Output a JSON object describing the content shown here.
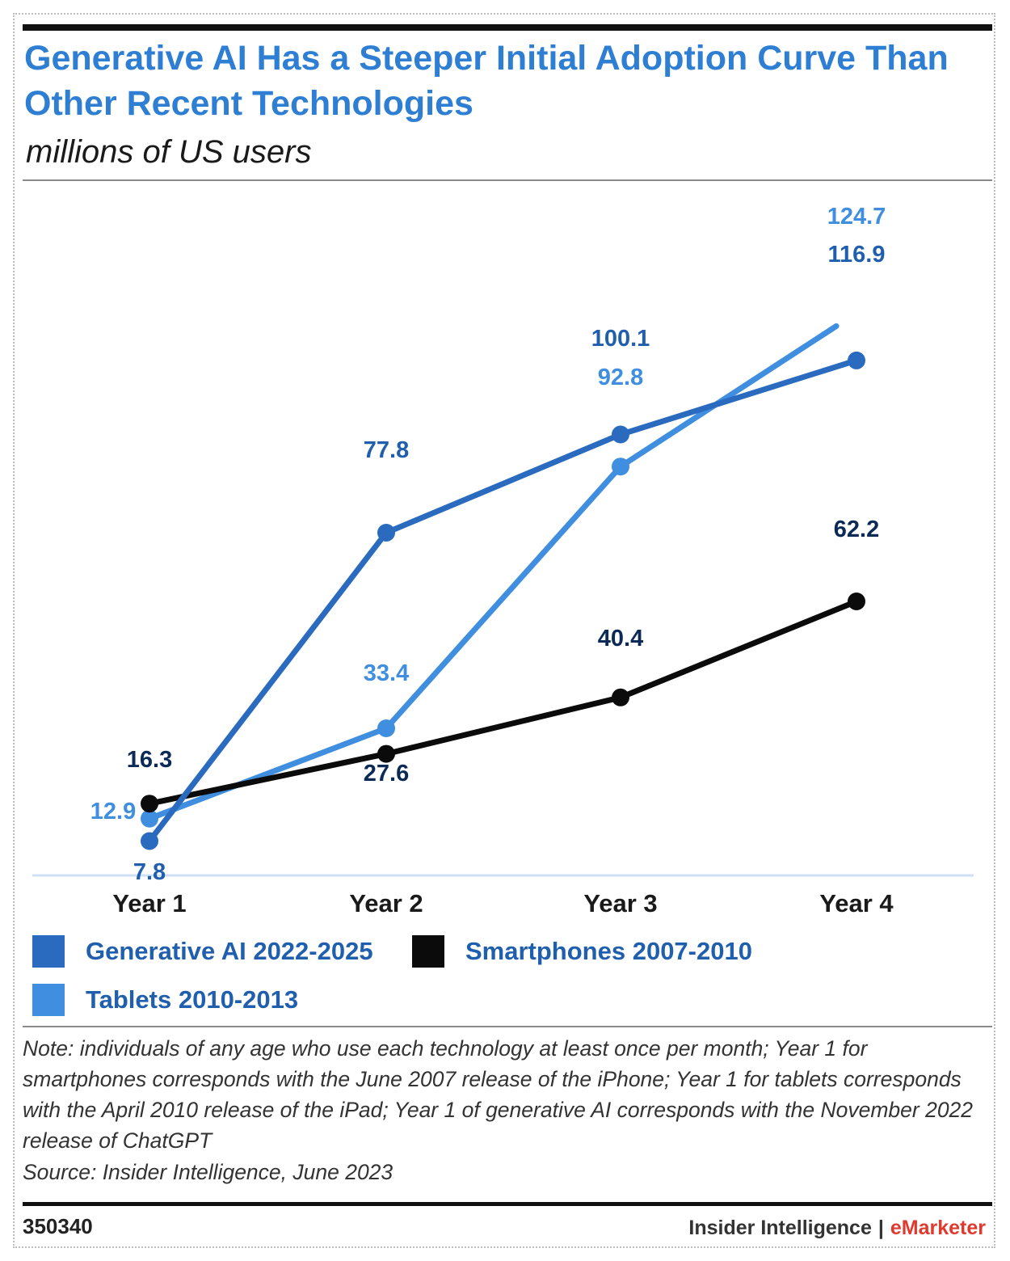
{
  "header": {
    "title": "Generative AI Has a Steeper Initial Adoption Curve Than Other Recent Technologies",
    "subtitle": "millions of US users"
  },
  "chart_data": {
    "type": "line",
    "title": "Generative AI Has a Steeper Initial Adoption Curve Than Other Recent Technologies",
    "subtitle": "millions of US users",
    "categories": [
      "Year 1",
      "Year 2",
      "Year 3",
      "Year 4"
    ],
    "ylim": [
      0,
      140
    ],
    "grid": false,
    "legend_position": "bottom",
    "series": [
      {
        "name": "Generative AI 2022-2025",
        "color": "#2a6bbf",
        "values": [
          7.8,
          77.8,
          100.1,
          116.9
        ],
        "labels": [
          "7.8",
          "77.8",
          "100.1",
          "116.9"
        ]
      },
      {
        "name": "Smartphones 2007-2010",
        "color": "#0b0b0b",
        "values": [
          16.3,
          27.6,
          40.4,
          62.2
        ],
        "labels": [
          "16.3",
          "27.6",
          "40.4",
          "62.2"
        ]
      },
      {
        "name": "Tablets 2010-2013",
        "color": "#3f8ee0",
        "values": [
          12.9,
          33.4,
          92.8,
          124.7
        ],
        "labels": [
          "12.9",
          "33.4",
          "92.8",
          "124.7"
        ]
      }
    ]
  },
  "legend": {
    "items": [
      {
        "label": "Generative AI 2022-2025",
        "color": "#2a6bbf"
      },
      {
        "label": "Smartphones 2007-2010",
        "color": "#0b0b0b"
      },
      {
        "label": "Tablets 2010-2013",
        "color": "#3f8ee0"
      }
    ]
  },
  "footer": {
    "note": "Note: individuals of any age who use each technology at least once per month; Year 1 for smartphones corresponds with the June 2007 release of the iPhone; Year 1 for tablets corresponds with the April 2010 release of the iPad; Year 1 of generative AI corresponds with the November 2022 release of ChatGPT",
    "source": "Source: Insider Intelligence, June 2023",
    "chart_id": "350340",
    "brand_primary": "Insider Intelligence",
    "brand_separator": "|",
    "brand_secondary": "eMarketer",
    "brand_secondary_color": "#e03a2f"
  }
}
